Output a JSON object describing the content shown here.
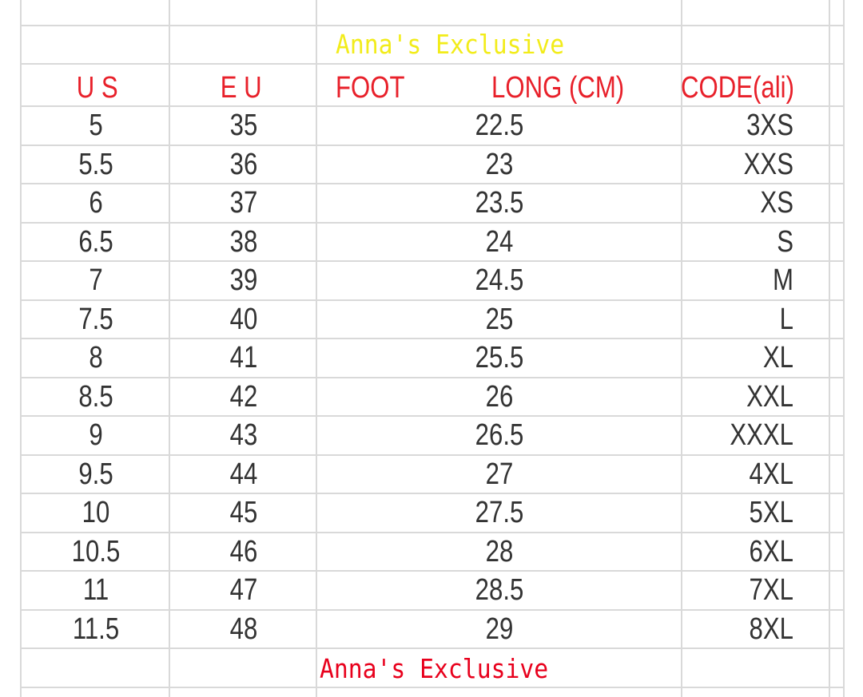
{
  "colors": {
    "header": "#e8202a",
    "text": "#333333",
    "grid": "#d9d9d9",
    "watermark_top": "#f2ec1a",
    "watermark_bottom": "#e8001c"
  },
  "header": {
    "us": "U S",
    "eu": "E U",
    "foot": "FOOT",
    "long": "LONG (CM)",
    "code": "CODE(ali)"
  },
  "rows": [
    {
      "us": "5",
      "eu": "35",
      "cm": "22.5",
      "code": "3XS"
    },
    {
      "us": "5.5",
      "eu": "36",
      "cm": "23",
      "code": "XXS"
    },
    {
      "us": "6",
      "eu": "37",
      "cm": "23.5",
      "code": "XS"
    },
    {
      "us": "6.5",
      "eu": "38",
      "cm": "24",
      "code": "S"
    },
    {
      "us": "7",
      "eu": "39",
      "cm": "24.5",
      "code": "M"
    },
    {
      "us": "7.5",
      "eu": "40",
      "cm": "25",
      "code": "L"
    },
    {
      "us": "8",
      "eu": "41",
      "cm": "25.5",
      "code": "XL"
    },
    {
      "us": "8.5",
      "eu": "42",
      "cm": "26",
      "code": "XXL"
    },
    {
      "us": "9",
      "eu": "43",
      "cm": "26.5",
      "code": "XXXL"
    },
    {
      "us": "9.5",
      "eu": "44",
      "cm": "27",
      "code": "4XL"
    },
    {
      "us": "10",
      "eu": "45",
      "cm": "27.5",
      "code": "5XL"
    },
    {
      "us": "10.5",
      "eu": "46",
      "cm": "28",
      "code": "6XL"
    },
    {
      "us": "11",
      "eu": "47",
      "cm": "28.5",
      "code": "7XL"
    },
    {
      "us": "11.5",
      "eu": "48",
      "cm": "29",
      "code": "8XL"
    }
  ],
  "watermarks": {
    "top": "Anna's Exclusive",
    "bottom": "Anna's Exclusive"
  }
}
